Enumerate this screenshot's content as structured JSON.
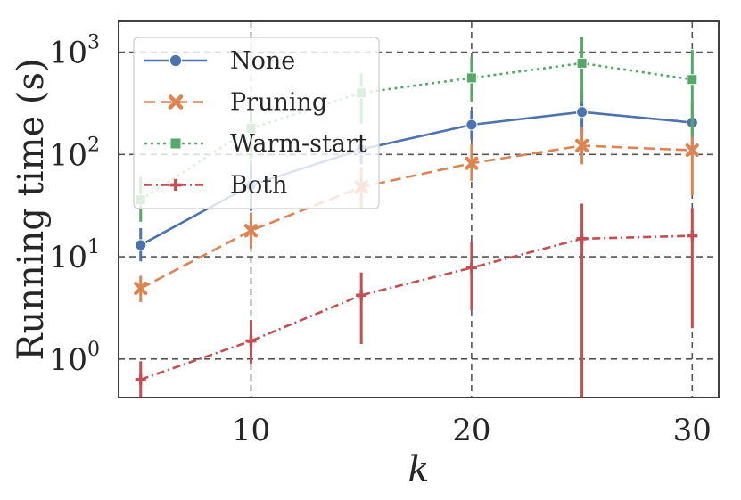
{
  "chart_data": {
    "type": "line",
    "title": "",
    "xlabel": "k",
    "ylabel": "Running time (s)",
    "yscale": "log",
    "xlim": [
      4,
      31.2
    ],
    "ylim": [
      0.42,
      2000
    ],
    "xticks": [
      10,
      20,
      30
    ],
    "yticks": [
      {
        "value": 1,
        "base": "10",
        "exp": "0"
      },
      {
        "value": 10,
        "base": "10",
        "exp": "1"
      },
      {
        "value": 100,
        "base": "10",
        "exp": "2"
      },
      {
        "value": 1000,
        "base": "10",
        "exp": "3"
      }
    ],
    "grid": true,
    "legend_position": "top-left",
    "x": [
      5,
      10,
      15,
      20,
      25,
      30
    ],
    "series": [
      {
        "name": "None",
        "color": "#4c72b0",
        "dash": "solid",
        "marker": "circle",
        "values": [
          13,
          50,
          112,
          195,
          260,
          205
        ],
        "err_low": [
          9,
          28,
          80,
          140,
          160,
          120
        ],
        "err_high": [
          19,
          85,
          160,
          270,
          420,
          320
        ]
      },
      {
        "name": "Pruning",
        "color": "#dd8452",
        "dash": "dashed",
        "marker": "x",
        "values": [
          4.9,
          18,
          48,
          82,
          122,
          110
        ],
        "err_low": [
          3.6,
          12,
          30,
          55,
          80,
          40
        ],
        "err_high": [
          6.5,
          27,
          75,
          125,
          185,
          200
        ]
      },
      {
        "name": "Warm-start",
        "color": "#55a868",
        "dash": "dotted",
        "marker": "square",
        "values": [
          36,
          180,
          400,
          560,
          780,
          540
        ],
        "err_low": [
          22,
          90,
          200,
          330,
          320,
          150
        ],
        "err_high": [
          60,
          320,
          620,
          900,
          1400,
          1050
        ]
      },
      {
        "name": "Both",
        "color": "#c44e52",
        "dash": "dashdot",
        "marker": "plus",
        "values": [
          0.63,
          1.5,
          4.2,
          7.8,
          15,
          16
        ],
        "err_low": [
          0.4,
          0.9,
          1.4,
          3.0,
          0.4,
          2.0
        ],
        "err_high": [
          0.95,
          2.4,
          7.0,
          14,
          33,
          30
        ]
      }
    ]
  }
}
